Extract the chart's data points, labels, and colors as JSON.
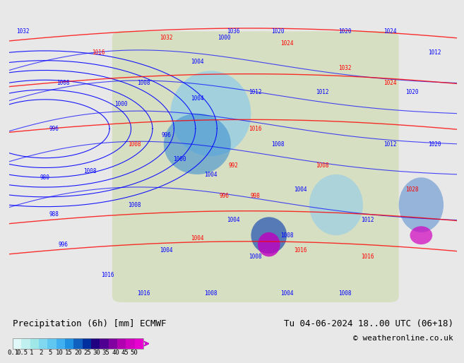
{
  "title_left": "Precipitation (6h) [mm] ECMWF",
  "title_right": "Tu 04-06-2024 18..00 UTC (06+18)",
  "copyright": "© weatheronline.co.uk",
  "colorbar_labels": [
    "0.1",
    "0.5",
    "1",
    "2",
    "5",
    "10",
    "15",
    "20",
    "25",
    "30",
    "35",
    "40",
    "45",
    "50"
  ],
  "colorbar_colors": [
    "#e0f8f8",
    "#c0f0f0",
    "#a0e8e8",
    "#80d8f0",
    "#60c8f0",
    "#40b0f0",
    "#2090e0",
    "#1060c0",
    "#0030a0",
    "#200080",
    "#500090",
    "#8000a0",
    "#b000b0",
    "#d000c0",
    "#e800d0"
  ],
  "bg_color": "#e8e8e8",
  "map_bg_color": "#d0e8f8",
  "label_fontsize": 9,
  "title_fontsize": 9
}
